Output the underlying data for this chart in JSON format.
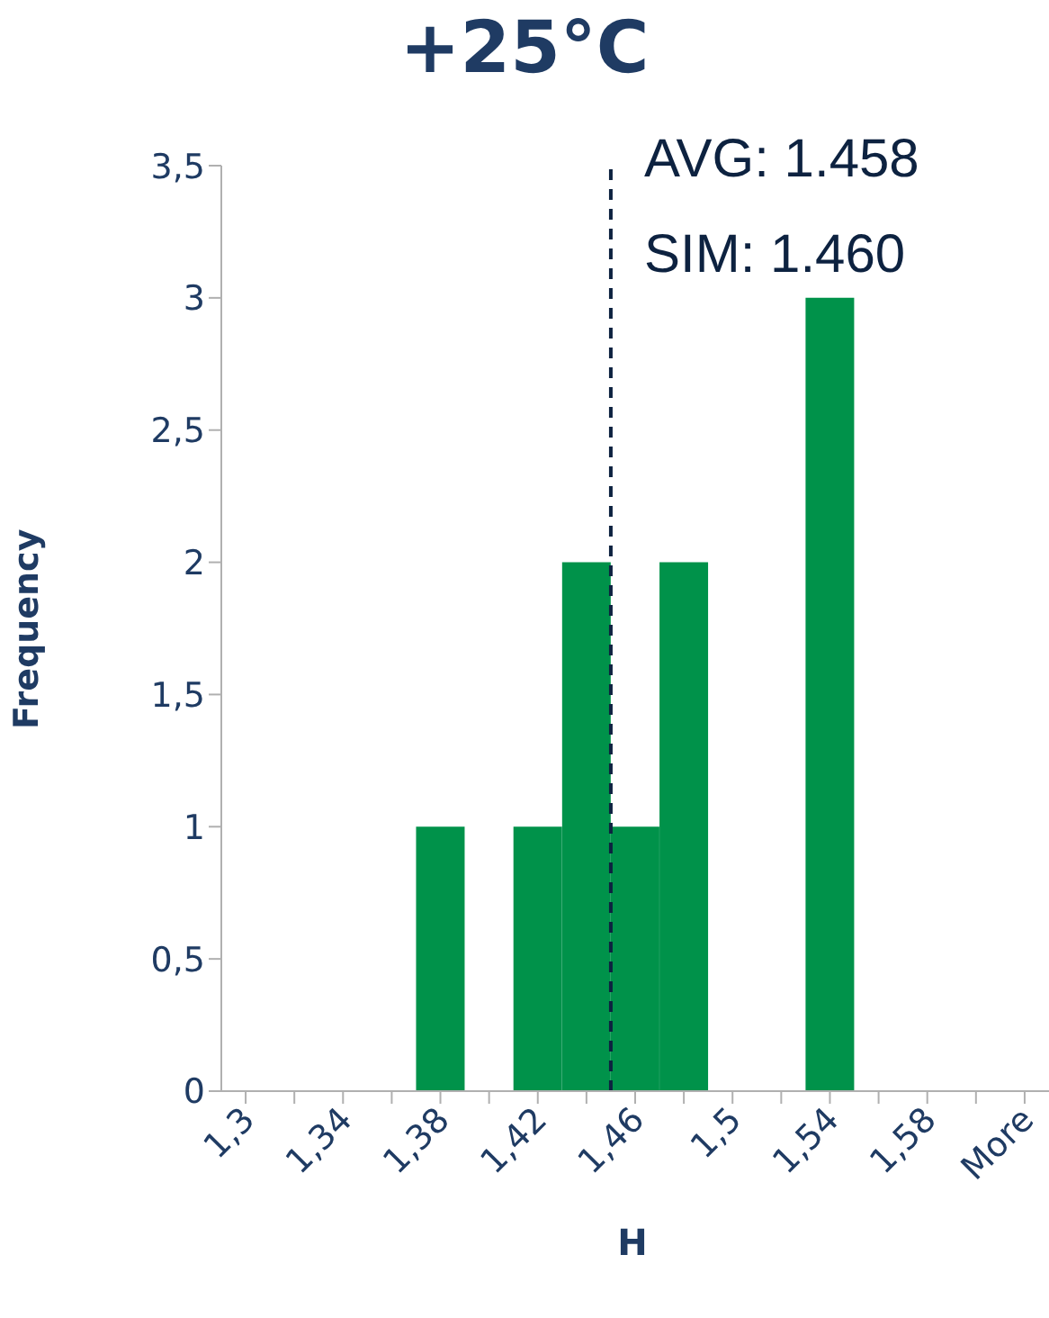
{
  "chart_data": {
    "type": "bar",
    "title": "+25°C",
    "xlabel": "H",
    "ylabel": "Frequency",
    "categories": [
      "1,3",
      null,
      "1,34",
      null,
      "1,38",
      null,
      "1,42",
      null,
      "1,46",
      null,
      "1,5",
      null,
      "1,54",
      null,
      "1,58",
      null,
      "More"
    ],
    "values": [
      0,
      0,
      0,
      0,
      1,
      0,
      1,
      2,
      1,
      2,
      0,
      0,
      3,
      0,
      0,
      0,
      0
    ],
    "color": "#00924a",
    "ylim": [
      0,
      3.5
    ],
    "yticks": [
      {
        "value": 0,
        "label": "0"
      },
      {
        "value": 0.5,
        "label": "0,5"
      },
      {
        "value": 1,
        "label": "1"
      },
      {
        "value": 1.5,
        "label": "1,5"
      },
      {
        "value": 2,
        "label": "2"
      },
      {
        "value": 2.5,
        "label": "2,5"
      },
      {
        "value": 3,
        "label": "3"
      },
      {
        "value": 3.5,
        "label": "3,5"
      }
    ],
    "ref_lines": [
      {
        "axis": "x",
        "value": "1,46",
        "color": "#0d2240",
        "line_style": "dashed"
      }
    ],
    "annotations": [
      "AVG: 1.458",
      "SIM: 1.460"
    ],
    "grid": false,
    "legend": false
  }
}
